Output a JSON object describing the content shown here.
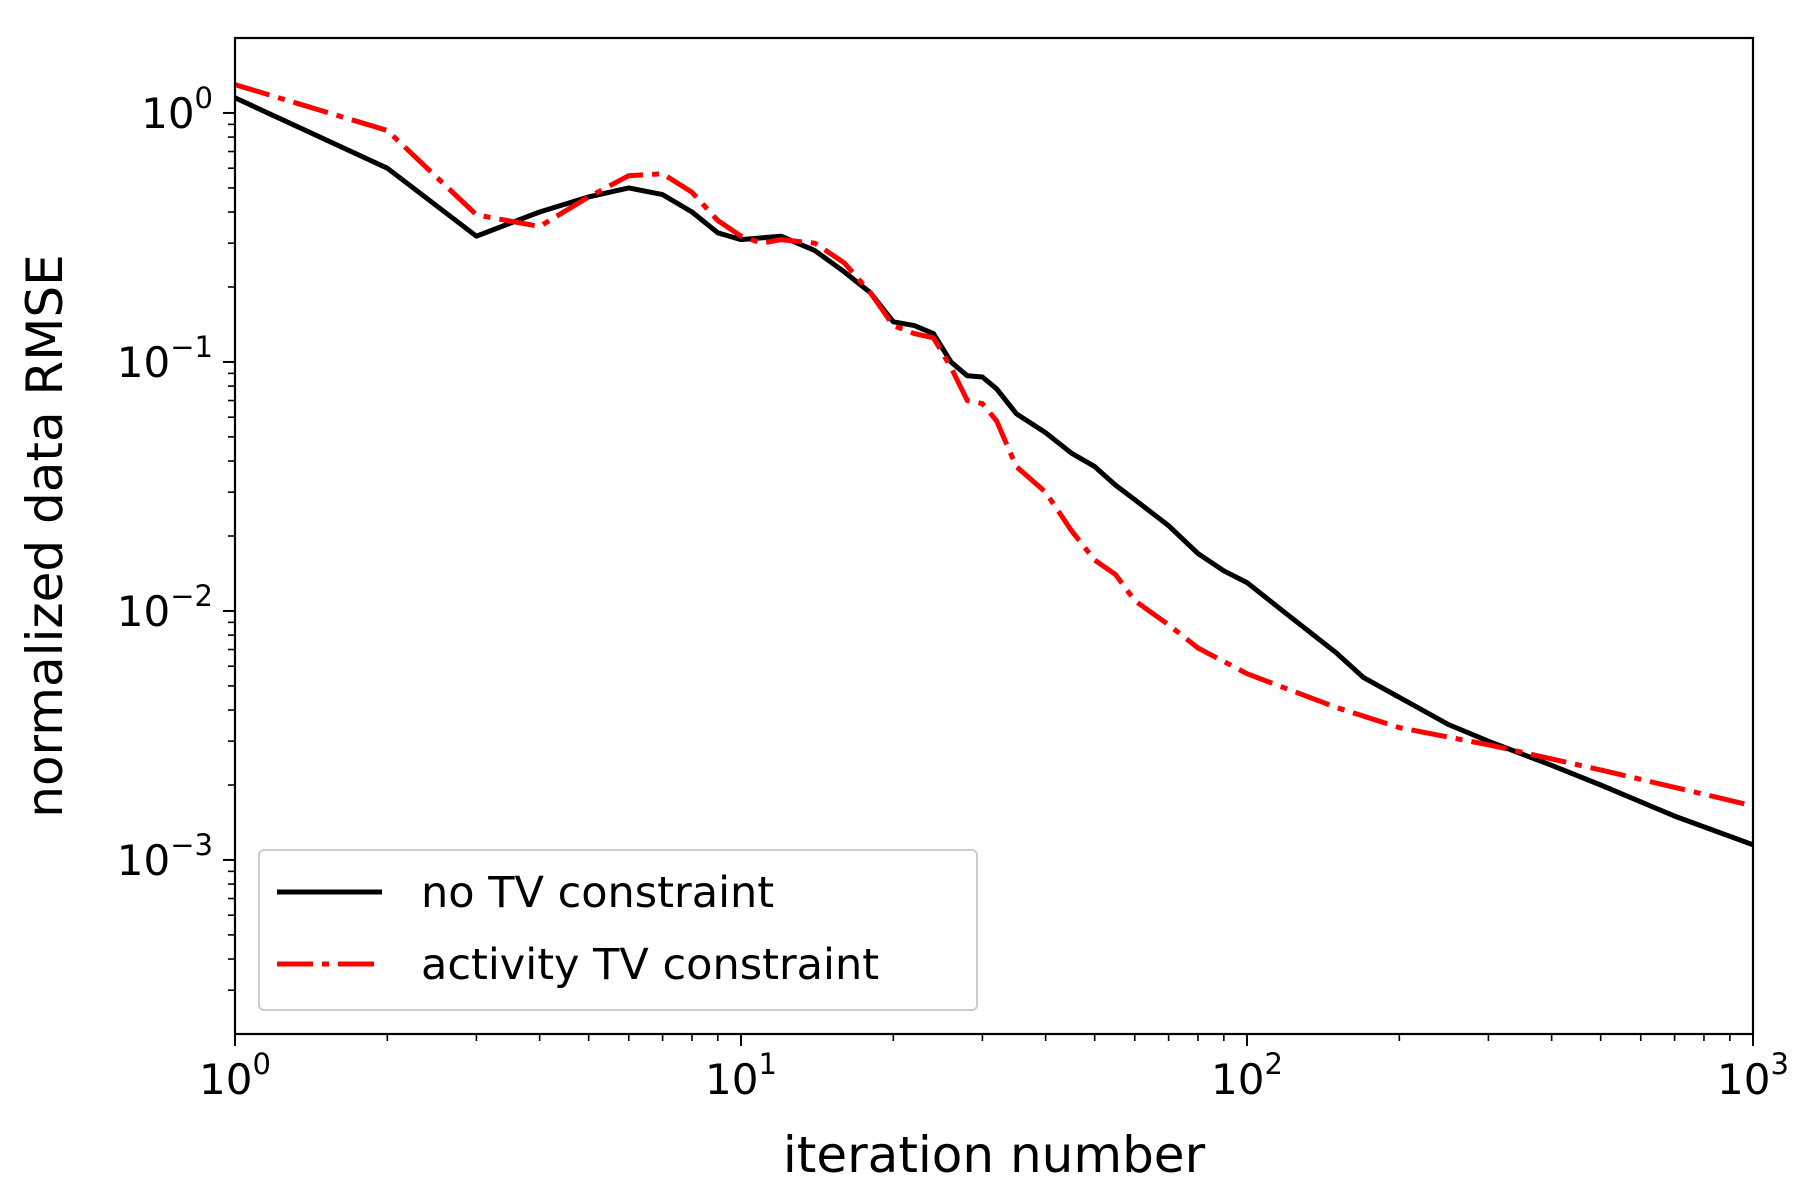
{
  "chart_data": {
    "type": "line",
    "title": "",
    "xlabel": "iteration number",
    "ylabel": "normalized data RMSE",
    "xscale": "log",
    "yscale": "log",
    "xlim": [
      1,
      1000
    ],
    "ylim": [
      0.0002,
      2.0
    ],
    "x_ticks": [
      {
        "value": 1,
        "base": "10",
        "exp": "0"
      },
      {
        "value": 10,
        "base": "10",
        "exp": "1"
      },
      {
        "value": 100,
        "base": "10",
        "exp": "2"
      },
      {
        "value": 1000,
        "base": "10",
        "exp": "3"
      }
    ],
    "y_ticks": [
      {
        "value": 1,
        "base": "10",
        "exp": "0"
      },
      {
        "value": 0.1,
        "base": "10",
        "exp": "−1"
      },
      {
        "value": 0.01,
        "base": "10",
        "exp": "−2"
      },
      {
        "value": 0.001,
        "base": "10",
        "exp": "−3"
      }
    ],
    "grid": false,
    "legend_position": "lower-left",
    "series": [
      {
        "name": "no TV constraint",
        "color": "#000000",
        "style": "solid",
        "x": [
          1,
          2,
          3,
          4,
          5,
          6,
          7,
          8,
          9,
          10,
          12,
          14,
          16,
          18,
          20,
          22,
          24,
          26,
          28,
          30,
          32,
          35,
          40,
          45,
          50,
          55,
          60,
          70,
          80,
          90,
          100,
          120,
          150,
          170,
          200,
          250,
          300,
          400,
          500,
          700,
          1000
        ],
        "y": [
          1.15,
          0.6,
          0.32,
          0.4,
          0.46,
          0.5,
          0.47,
          0.4,
          0.33,
          0.31,
          0.32,
          0.28,
          0.23,
          0.19,
          0.145,
          0.14,
          0.13,
          0.1,
          0.088,
          0.087,
          0.078,
          0.062,
          0.052,
          0.043,
          0.038,
          0.032,
          0.028,
          0.022,
          0.017,
          0.0145,
          0.013,
          0.0097,
          0.0068,
          0.0054,
          0.0045,
          0.0035,
          0.003,
          0.0024,
          0.002,
          0.0015,
          0.00115
        ]
      },
      {
        "name": "activity TV constraint",
        "color": "#ff0000",
        "style": "dash-dot",
        "x": [
          1,
          2,
          3,
          4,
          5,
          6,
          7,
          8,
          9,
          10,
          11,
          12,
          14,
          16,
          18,
          20,
          22,
          24,
          26,
          28,
          30,
          32,
          35,
          40,
          45,
          50,
          55,
          60,
          70,
          80,
          100,
          150,
          200,
          300,
          500,
          1000
        ],
        "y": [
          1.3,
          0.85,
          0.39,
          0.35,
          0.46,
          0.56,
          0.57,
          0.48,
          0.37,
          0.32,
          0.3,
          0.31,
          0.3,
          0.25,
          0.19,
          0.14,
          0.13,
          0.125,
          0.095,
          0.07,
          0.068,
          0.058,
          0.038,
          0.03,
          0.021,
          0.016,
          0.014,
          0.011,
          0.0088,
          0.0071,
          0.0056,
          0.0041,
          0.0034,
          0.0029,
          0.0023,
          0.00165
        ]
      }
    ]
  }
}
